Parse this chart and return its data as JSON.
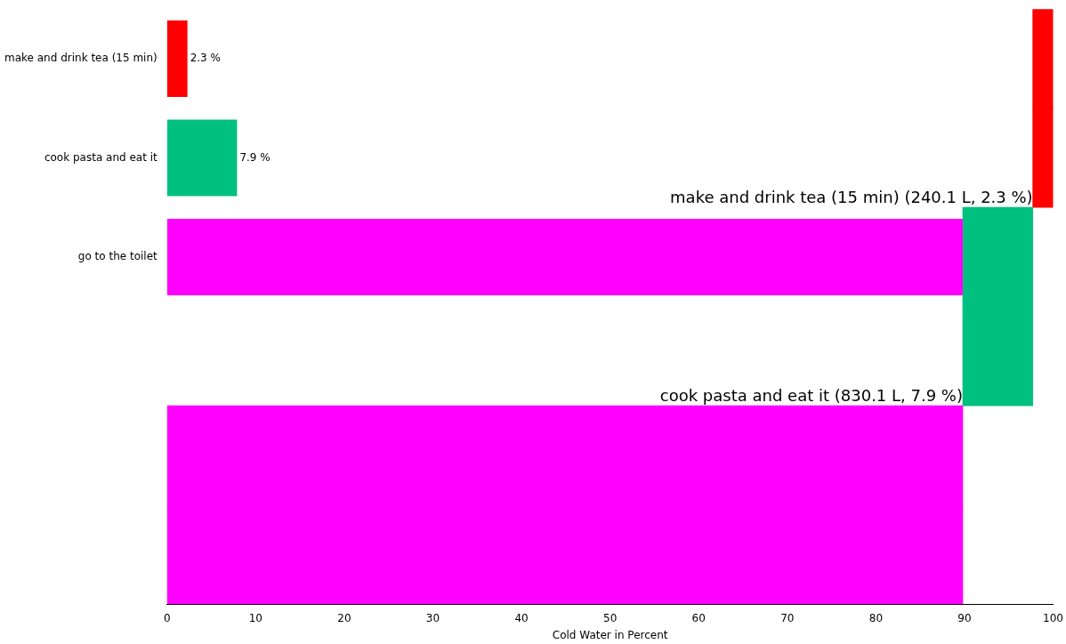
{
  "chart_data": {
    "type": "bar",
    "orientation": "horizontal",
    "xlabel": "Cold Water in Percent",
    "categories": [
      "make and drink tea (15 min)",
      "cook pasta and eat it",
      "go to the toilet",
      null,
      null,
      null
    ],
    "series": [
      {
        "colors": [
          "#ff0000",
          "#00c080",
          "#ff00ff",
          null,
          null,
          null
        ],
        "values": [
          2.3,
          7.9,
          89.8,
          null,
          null,
          null
        ],
        "value_labels": [
          "2.3 %",
          "7.9 %",
          null,
          null,
          null,
          null
        ]
      },
      {
        "colors": [
          "#ff0000",
          "#ff0000",
          "#00c080",
          "#00c080",
          "#ff00ff",
          "#ff00ff"
        ],
        "base": [
          97.7,
          97.7,
          89.8,
          89.8,
          0,
          0
        ],
        "values": [
          2.3,
          2.3,
          7.9,
          7.9,
          89.8,
          89.8
        ]
      }
    ],
    "xlim": [
      0,
      100
    ],
    "xticks": [
      0,
      10,
      20,
      30,
      40,
      50,
      60,
      70,
      80,
      90,
      100
    ],
    "grid": false,
    "legend": false,
    "annotations": [
      "make and drink tea (15 min) (240.1 L, 2.3 %)",
      "cook pasta and eat it (830.1 L, 7.9 %)"
    ]
  }
}
